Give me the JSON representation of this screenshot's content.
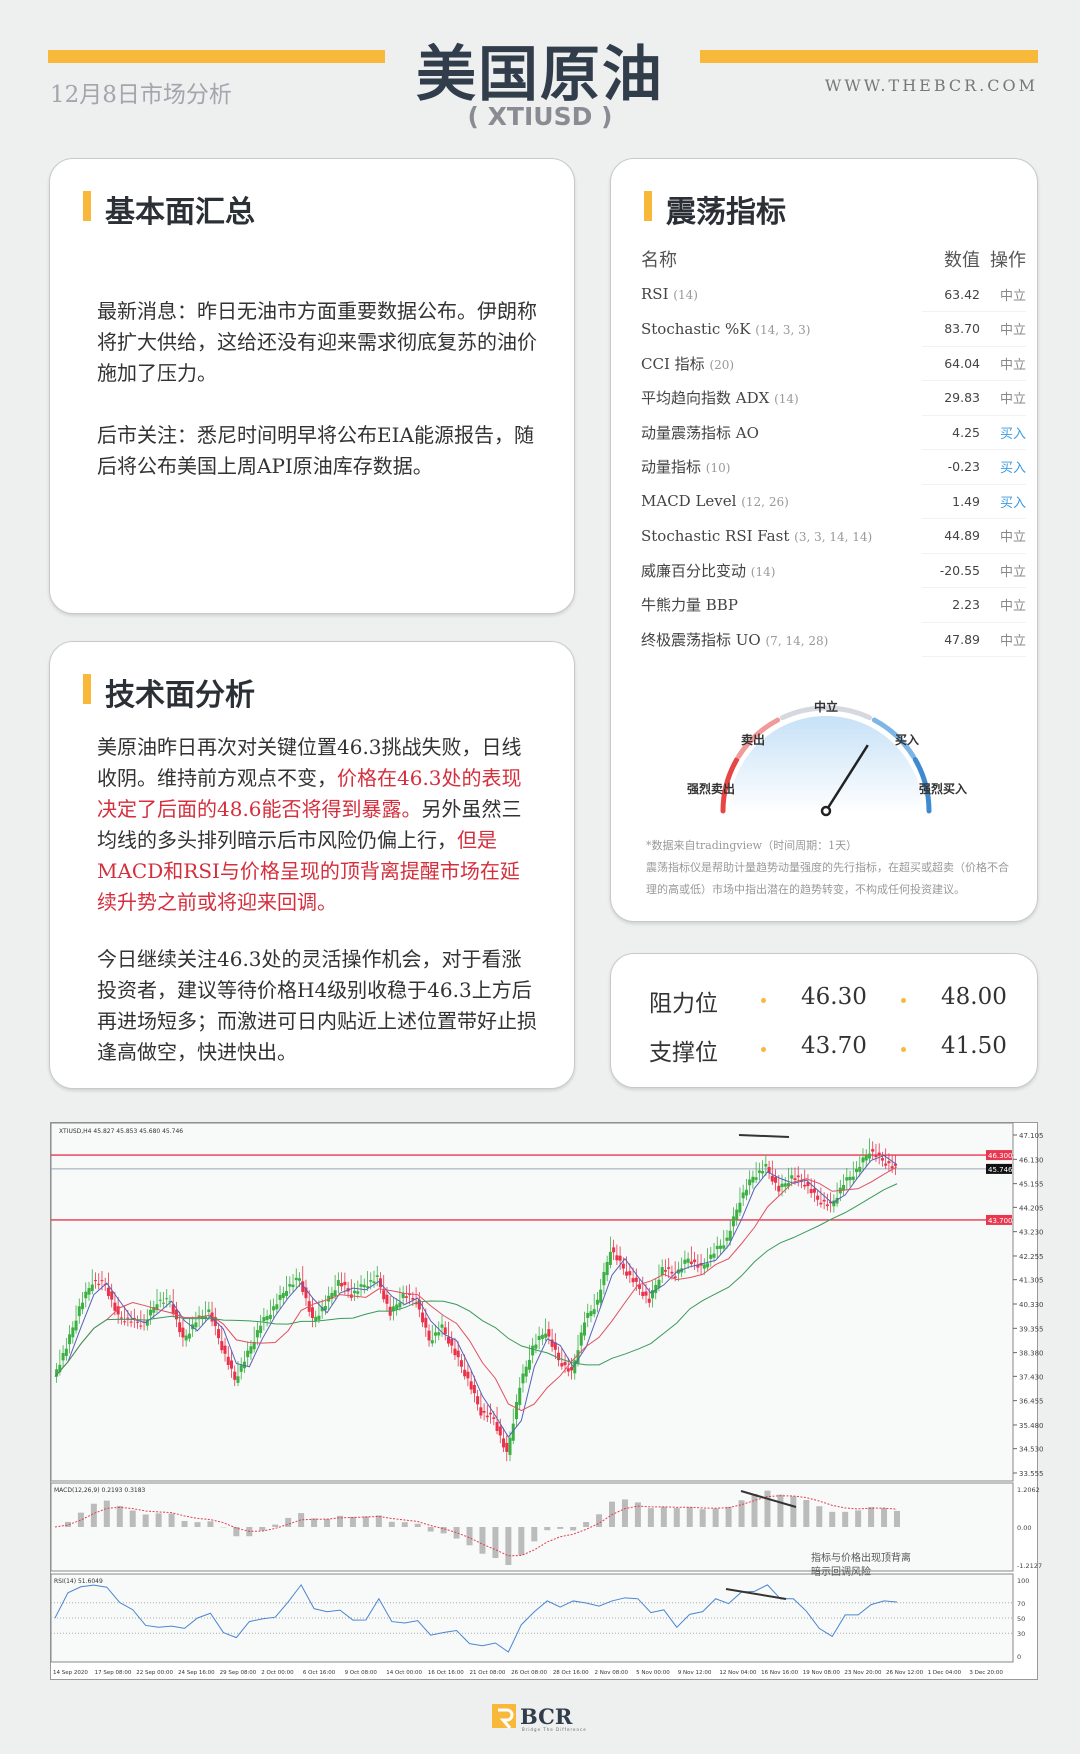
{
  "header": {
    "title": "美国原油",
    "symbol": "( XTIUSD )",
    "date": "12月8日市场分析",
    "website": "WWW.THEBCR.COM"
  },
  "colors": {
    "accent": "#f8b93a",
    "title": "#323d4c",
    "highlight": "#d42f3d",
    "buy": "#3a9ae0"
  },
  "fundamentals": {
    "title": "基本面汇总",
    "p1": "最新消息：昨日无油市方面重要数据公布。伊朗称将扩大供给，这给还没有迎来需求彻底复苏的油价施加了压力。",
    "p2": "后市关注：悉尼时间明早将公布EIA能源报告，随后将公布美国上周API原油库存数据。"
  },
  "technical": {
    "title": "技术面分析",
    "p1a": "美原油昨日再次对关键位置46.3挑战失败，日线收阴。维持前方观点不变，",
    "p1b": "价格在46.3处的表现决定了后面的48.6能否将得到暴露。",
    "p1c": "另外虽然三均线的多头排列暗示后市风险仍偏上行，",
    "p1d": "但是MACD和RSI与价格呈现的顶背离提醒市场在延续升势之前或将迎来回调。",
    "p2": "今日继续关注46.3处的灵活操作机会，对于看涨投资者，建议等待价格H4级别收稳于46.3上方后再进场短多；而激进可日内贴近上述位置带好止损逢高做空，快进快出。"
  },
  "oscillators": {
    "title": "震荡指标",
    "col_name": "名称",
    "col_value": "数值",
    "col_action": "操作",
    "rows": [
      {
        "name": "RSI",
        "param": "(14)",
        "value": "63.42",
        "action": "中立"
      },
      {
        "name": "Stochastic %K",
        "param": "(14, 3, 3)",
        "value": "83.70",
        "action": "中立"
      },
      {
        "name": "CCI 指标",
        "param": "(20)",
        "value": "64.04",
        "action": "中立"
      },
      {
        "name": "平均趋向指数 ADX",
        "param": "(14)",
        "value": "29.83",
        "action": "中立"
      },
      {
        "name": "动量震荡指标 AO",
        "param": "",
        "value": "4.25",
        "action": "买入"
      },
      {
        "name": "动量指标",
        "param": "(10)",
        "value": "-0.23",
        "action": "买入"
      },
      {
        "name": "MACD Level",
        "param": "(12, 26)",
        "value": "1.49",
        "action": "买入"
      },
      {
        "name": "Stochastic RSI Fast",
        "param": "(3, 3, 14, 14)",
        "value": "44.89",
        "action": "中立"
      },
      {
        "name": "威廉百分比变动",
        "param": "(14)",
        "value": "-20.55",
        "action": "中立"
      },
      {
        "name": "牛熊力量 BBP",
        "param": "",
        "value": "2.23",
        "action": "中立"
      },
      {
        "name": "终极震荡指标 UO",
        "param": "(7, 14, 28)",
        "value": "47.89",
        "action": "中立"
      }
    ],
    "gauge": {
      "labels": {
        "strong_sell": "强烈卖出",
        "sell": "卖出",
        "neutral": "中立",
        "buy": "买入",
        "strong_buy": "强烈买入"
      },
      "needle_level": 0.68
    },
    "source": "*数据来自tradingview（时间周期：1天）",
    "disclaimer": "震荡指标仪是帮助计量趋势动量强度的先行指标，在超买或超卖（价格不合理的高或低）市场中指出潜在的趋势转变，不构成任何投资建议。"
  },
  "levels": {
    "resistance_label": "阻力位",
    "r1": "46.30",
    "r2": "48.00",
    "support_label": "支撑位",
    "s1": "43.70",
    "s2": "41.50"
  },
  "chart_data": {
    "type": "line",
    "header": "XTIUSD,H4  45.827 45.853 45.680 45.746",
    "price_ticks": [
      "47.105",
      "46.130",
      "45.155",
      "44.205",
      "43.230",
      "42.255",
      "41.305",
      "40.330",
      "39.355",
      "38.380",
      "37.430",
      "36.455",
      "35.480",
      "34.530",
      "33.555"
    ],
    "ylim": [
      33.555,
      47.105
    ],
    "levels": [
      {
        "label": "46.300",
        "value": 46.3,
        "color": "#e8374f"
      },
      {
        "label": "43.700",
        "value": 43.7,
        "color": "#e8374f"
      },
      {
        "label": "45.746",
        "value": 45.746,
        "color": "#111111"
      }
    ],
    "close": [
      37.42,
      38.6,
      40.18,
      41.23,
      41.1,
      39.79,
      39.65,
      39.52,
      40.44,
      40.44,
      38.87,
      39.65,
      40.05,
      38.6,
      37.29,
      38.34,
      39.52,
      40.18,
      40.97,
      41.36,
      39.65,
      40.31,
      41.23,
      40.7,
      41.1,
      41.36,
      39.92,
      40.7,
      40.44,
      38.87,
      39.39,
      38.34,
      37.29,
      35.98,
      35.72,
      34.28,
      37.03,
      38.6,
      39.26,
      38.08,
      37.55,
      39.65,
      40.44,
      42.54,
      41.75,
      41.1,
      40.44,
      41.75,
      41.49,
      42.15,
      41.75,
      42.41,
      42.93,
      44.51,
      45.43,
      45.82,
      44.9,
      45.43,
      45.16,
      44.51,
      44.25,
      45.16,
      45.69,
      46.48,
      46.08,
      45.75
    ],
    "macd": {
      "header": "MACD(12,26,9) 0.2193 0.3183",
      "ticks": [
        "1.2062",
        "0.00",
        "-1.2127"
      ]
    },
    "rsi": {
      "header": "RSI(14) 51.6049",
      "ticks": [
        "100",
        "70",
        "50",
        "30",
        "0"
      ]
    },
    "annotation": [
      "指标与价格出现顶背离",
      "暗示回调风险"
    ],
    "dates": [
      "14 Sep 2020",
      "17 Sep 08:00",
      "22 Sep 00:00",
      "24 Sep 16:00",
      "29 Sep 08:00",
      "2 Oct 00:00",
      "6 Oct 16:00",
      "9 Oct 08:00",
      "14 Oct 00:00",
      "16 Oct 16:00",
      "21 Oct 08:00",
      "26 Oct 08:00",
      "28 Oct 16:00",
      "2 Nov 08:00",
      "5 Nov 00:00",
      "9 Nov 12:00",
      "12 Nov 04:00",
      "16 Nov 16:00",
      "19 Nov 08:00",
      "23 Nov 20:00",
      "26 Nov 12:00",
      "1 Dec 04:00",
      "3 Dec 20:00"
    ]
  },
  "footer": {
    "logo": "BCR",
    "tagline": "Bridge The Difference"
  }
}
